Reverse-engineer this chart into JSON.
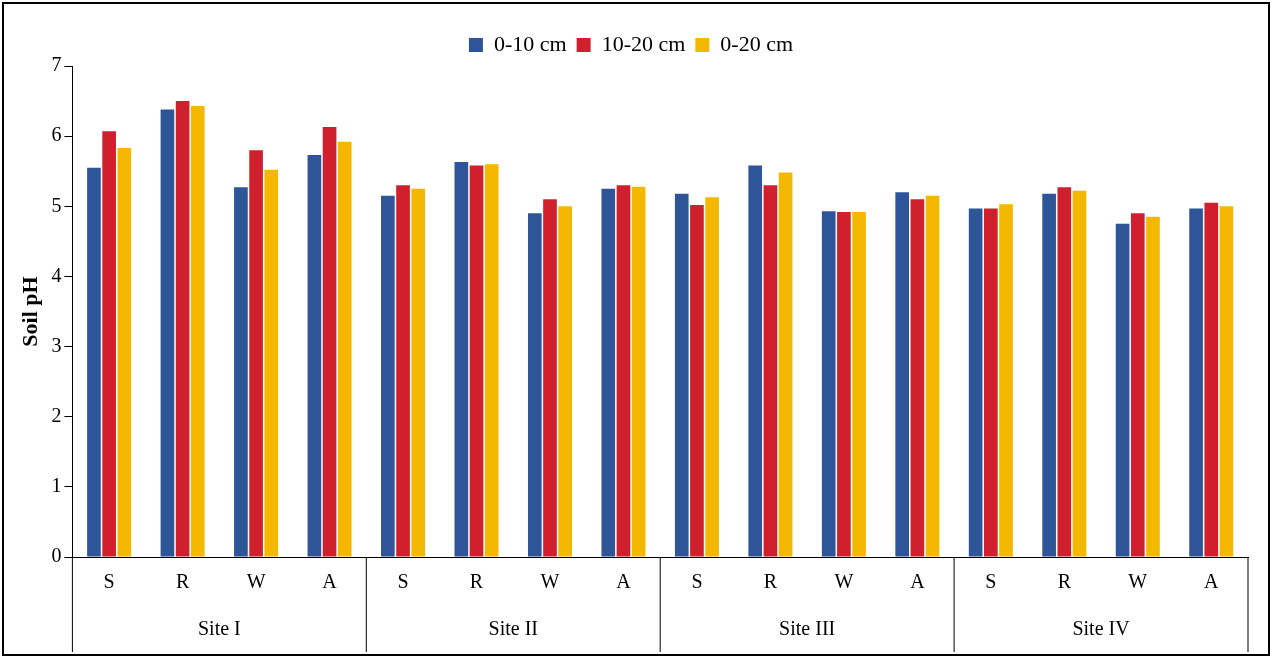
{
  "chart_data": {
    "type": "bar",
    "ylabel": "Soil pH",
    "categories": [
      "S",
      "R",
      "W",
      "A",
      "S",
      "R",
      "W",
      "A",
      "S",
      "R",
      "W",
      "A",
      "S",
      "R",
      "W",
      "A"
    ],
    "series": [
      {
        "name": "0-10 cm",
        "color": "#2e5597",
        "values": [
          5.55,
          6.38,
          5.27,
          5.73,
          5.15,
          5.63,
          4.9,
          5.25,
          5.18,
          5.58,
          4.93,
          5.2,
          4.97,
          5.18,
          4.75,
          4.97
        ]
      },
      {
        "name": "10-20 cm",
        "color": "#d0202e",
        "values": [
          6.07,
          6.5,
          5.8,
          6.13,
          5.3,
          5.58,
          5.1,
          5.3,
          5.02,
          5.3,
          4.92,
          5.1,
          4.97,
          5.27,
          4.9,
          5.05
        ]
      },
      {
        "name": "0-20 cm",
        "color": "#f5b800",
        "values": [
          5.83,
          6.43,
          5.52,
          5.92,
          5.25,
          5.6,
          5.0,
          5.28,
          5.13,
          5.48,
          4.92,
          5.15,
          5.03,
          5.22,
          4.85,
          5.0
        ]
      }
    ],
    "ylim": [
      0,
      7
    ],
    "yticks": [
      0,
      1,
      2,
      3,
      4,
      5,
      6,
      7
    ],
    "grid": false,
    "legend": "top",
    "annotations": [
      "Site I",
      "Site II",
      "Site III",
      "Site IV"
    ]
  }
}
